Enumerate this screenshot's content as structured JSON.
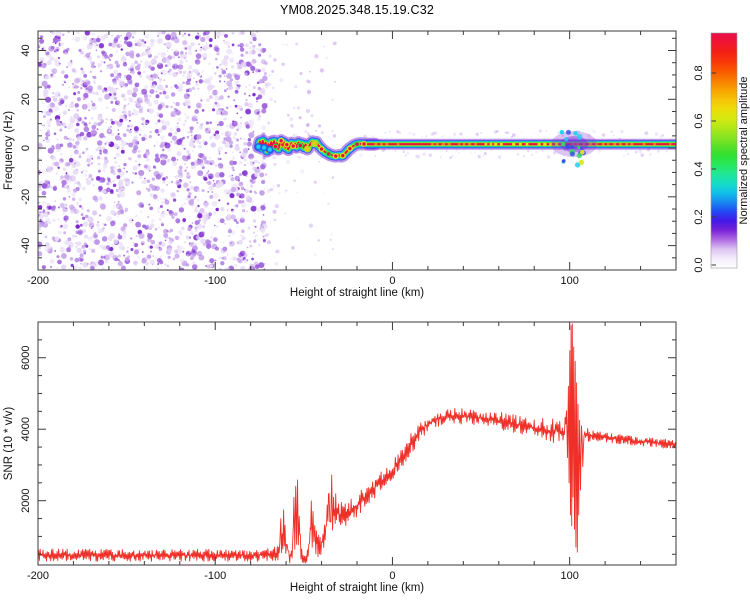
{
  "title": "YM08.2025.348.15.19.C32",
  "chart_data": [
    {
      "type": "heatmap",
      "name": "spectrogram",
      "xlabel": "Height of straight line (km)",
      "ylabel": "Frequency (Hz)",
      "xlim": [
        -200,
        160
      ],
      "ylim": [
        -50,
        48
      ],
      "x_minor_step": 20,
      "y_minor_step": 5,
      "x_major_ticks": [
        {
          "v": -200,
          "label": "-200"
        },
        {
          "v": -100,
          "label": "-100"
        },
        {
          "v": 0,
          "label": "0"
        },
        {
          "v": 100,
          "label": "100"
        }
      ],
      "y_major_ticks": [
        {
          "v": 40,
          "label": "40"
        },
        {
          "v": 20,
          "label": "20"
        },
        {
          "v": 0,
          "label": "0"
        },
        {
          "v": -20,
          "label": "-20"
        },
        {
          "v": -40,
          "label": "-40"
        }
      ],
      "noise_region_x": [
        -200,
        -72
      ],
      "disturbance_x": [
        95,
        110
      ],
      "trace_freq_hz": [
        [
          -75.6,
          0.5
        ],
        [
          -74.8,
          2.6
        ],
        [
          -74,
          0
        ],
        [
          -73.2,
          3
        ],
        [
          -72.4,
          0.2
        ],
        [
          -71.6,
          2.2
        ],
        [
          -70.8,
          -1.2
        ],
        [
          -70,
          1.6
        ],
        [
          -69.2,
          -0.6
        ],
        [
          -68.4,
          2.4
        ],
        [
          -67.6,
          0.4
        ],
        [
          -66.8,
          2.8
        ],
        [
          -66,
          0.6
        ],
        [
          -65.2,
          2
        ],
        [
          -64.4,
          -0.4
        ],
        [
          -63.6,
          1.6
        ],
        [
          -62.8,
          3
        ],
        [
          -62,
          1
        ],
        [
          -61.2,
          2.4
        ],
        [
          -60.4,
          0.2
        ],
        [
          -59.6,
          1.4
        ],
        [
          -58.8,
          -0.6
        ],
        [
          -58,
          0.8
        ],
        [
          -57,
          2
        ],
        [
          -56,
          0.8
        ],
        [
          -55,
          1.8
        ],
        [
          -54,
          0.4
        ],
        [
          -53,
          2.2
        ],
        [
          -52,
          1
        ],
        [
          -51,
          1.8
        ],
        [
          -50,
          0.2
        ],
        [
          -49,
          1.4
        ],
        [
          -48,
          -0.4
        ],
        [
          -47,
          0.8
        ],
        [
          -46,
          2
        ],
        [
          -45,
          2.6
        ],
        [
          -44,
          1.8
        ],
        [
          -43,
          2.4
        ],
        [
          -42,
          1.2
        ],
        [
          -41,
          0.4
        ],
        [
          -40,
          -0.4
        ],
        [
          -39,
          -1
        ],
        [
          -38,
          -1.6
        ],
        [
          -37,
          -2
        ],
        [
          -36,
          -2.4
        ],
        [
          -35,
          -2.8
        ],
        [
          -34,
          -3
        ],
        [
          -33,
          -3.2
        ],
        [
          -32,
          -3.3
        ],
        [
          -31,
          -3.2
        ],
        [
          -30,
          -3
        ],
        [
          -29,
          -3.3
        ],
        [
          -28,
          -3.1
        ],
        [
          -27,
          -2.4
        ],
        [
          -26,
          -1.6
        ],
        [
          -25,
          -0.8
        ],
        [
          -24,
          -0.2
        ],
        [
          -23,
          0.4
        ],
        [
          -22,
          0.9
        ],
        [
          -21,
          1.3
        ],
        [
          -20,
          1.6
        ],
        [
          -18,
          1.8
        ],
        [
          -16,
          1.7
        ],
        [
          -14,
          1.6
        ],
        [
          -10,
          1.6
        ],
        [
          0,
          1.6
        ],
        [
          40,
          1.6
        ],
        [
          80,
          1.6
        ],
        [
          120,
          1.6
        ],
        [
          160,
          1.6
        ]
      ],
      "colorbar": {
        "label": "Normalized spectral amplitude",
        "ticks": [
          {
            "v": 0.0,
            "label": "0.0"
          },
          {
            "v": 0.2,
            "label": "0.2"
          },
          {
            "v": 0.4,
            "label": "0.4"
          },
          {
            "v": 0.6,
            "label": "0.6"
          },
          {
            "v": 0.8,
            "label": "0.8"
          }
        ],
        "stops": [
          [
            0,
            "#ffffff"
          ],
          [
            0.04,
            "#f4ecfa"
          ],
          [
            0.08,
            "#ddc4f2"
          ],
          [
            0.12,
            "#b06ce2"
          ],
          [
            0.16,
            "#7a24d8"
          ],
          [
            0.2,
            "#4418e8"
          ],
          [
            0.24,
            "#2248f4"
          ],
          [
            0.28,
            "#1888f0"
          ],
          [
            0.32,
            "#10c0e8"
          ],
          [
            0.36,
            "#16dcc4"
          ],
          [
            0.4,
            "#20e896"
          ],
          [
            0.44,
            "#28e85c"
          ],
          [
            0.48,
            "#30e032"
          ],
          [
            0.52,
            "#5ce028"
          ],
          [
            0.56,
            "#8ce420"
          ],
          [
            0.6,
            "#b4e818"
          ],
          [
            0.64,
            "#d8e810"
          ],
          [
            0.68,
            "#eeda08"
          ],
          [
            0.72,
            "#f6c006"
          ],
          [
            0.76,
            "#f8a000"
          ],
          [
            0.8,
            "#f87c00"
          ],
          [
            0.84,
            "#f85600"
          ],
          [
            0.88,
            "#f83608"
          ],
          [
            0.92,
            "#f42016"
          ],
          [
            0.96,
            "#ee1432"
          ],
          [
            1,
            "#e80e4a"
          ]
        ]
      }
    },
    {
      "type": "line",
      "name": "snr",
      "xlabel": "Height of straight line (km)",
      "ylabel": "SNR (10 * v/v)",
      "xlim": [
        -200,
        160
      ],
      "ylim": [
        200,
        7000
      ],
      "x_minor_step": 20,
      "y_minor_step": 500,
      "x_major_ticks": [
        {
          "v": -200,
          "label": "-200"
        },
        {
          "v": -100,
          "label": "-100"
        },
        {
          "v": 0,
          "label": "0"
        },
        {
          "v": 100,
          "label": "100"
        }
      ],
      "y_major_ticks": [
        {
          "v": 2000,
          "label": "2000"
        },
        {
          "v": 4000,
          "label": "4000"
        },
        {
          "v": 6000,
          "label": "6000"
        }
      ],
      "line_color": "#ee3028",
      "keypoints": [
        [
          -200,
          480,
          170
        ],
        [
          -160,
          470,
          170
        ],
        [
          -120,
          470,
          170
        ],
        [
          -90,
          470,
          170
        ],
        [
          -75,
          480,
          180
        ],
        [
          -68,
          490,
          190
        ],
        [
          -65,
          520,
          220
        ],
        [
          -63.5,
          700,
          400
        ],
        [
          -63,
          1500,
          250
        ],
        [
          -62.6,
          500,
          200
        ],
        [
          -62.2,
          1300,
          350
        ],
        [
          -61.8,
          600,
          250
        ],
        [
          -61.4,
          1800,
          300
        ],
        [
          -61,
          700,
          300
        ],
        [
          -60.6,
          1400,
          400
        ],
        [
          -60.2,
          500,
          250
        ],
        [
          -59.8,
          1100,
          350
        ],
        [
          -59.4,
          600,
          250
        ],
        [
          -59,
          900,
          300
        ],
        [
          -58.5,
          500,
          220
        ],
        [
          -58,
          430,
          200
        ],
        [
          -57,
          470,
          220
        ],
        [
          -56.2,
          900,
          400
        ],
        [
          -55.6,
          1900,
          400
        ],
        [
          -55.1,
          800,
          350
        ],
        [
          -54.6,
          2400,
          300
        ],
        [
          -54.1,
          900,
          400
        ],
        [
          -53.6,
          2200,
          500
        ],
        [
          -53.1,
          800,
          350
        ],
        [
          -52.6,
          1400,
          450
        ],
        [
          -52,
          800,
          350
        ],
        [
          -51.2,
          500,
          250
        ],
        [
          -50.4,
          420,
          200
        ],
        [
          -49.6,
          380,
          180
        ],
        [
          -48.8,
          400,
          190
        ],
        [
          -48,
          450,
          210
        ],
        [
          -47.2,
          600,
          280
        ],
        [
          -46.4,
          1100,
          400
        ],
        [
          -45.8,
          1750,
          350
        ],
        [
          -45.3,
          900,
          350
        ],
        [
          -44.8,
          1600,
          400
        ],
        [
          -44.3,
          850,
          350
        ],
        [
          -43.8,
          1250,
          400
        ],
        [
          -43.2,
          750,
          320
        ],
        [
          -42.6,
          950,
          350
        ],
        [
          -42,
          700,
          300
        ],
        [
          -41.2,
          800,
          320
        ],
        [
          -40.4,
          700,
          300
        ],
        [
          -39.6,
          850,
          330
        ],
        [
          -38.8,
          950,
          350
        ],
        [
          -38,
          1100,
          380
        ],
        [
          -37.2,
          1350,
          400
        ],
        [
          -36.4,
          1600,
          420
        ],
        [
          -35.8,
          2500,
          300
        ],
        [
          -35.3,
          1400,
          400
        ],
        [
          -34.8,
          1800,
          400
        ],
        [
          -34.3,
          2550,
          300
        ],
        [
          -33.8,
          1500,
          400
        ],
        [
          -33.2,
          1750,
          420
        ],
        [
          -32.6,
          1500,
          400
        ],
        [
          -32,
          1800,
          420
        ],
        [
          -31.2,
          1550,
          400
        ],
        [
          -30.4,
          1750,
          400
        ],
        [
          -29.6,
          1500,
          380
        ],
        [
          -28.8,
          1650,
          380
        ],
        [
          -28,
          1550,
          360
        ],
        [
          -27,
          1600,
          360
        ],
        [
          -26,
          1550,
          350
        ],
        [
          -25,
          1620,
          350
        ],
        [
          -24,
          1680,
          340
        ],
        [
          -23,
          1720,
          340
        ],
        [
          -22,
          1770,
          330
        ],
        [
          -21,
          1820,
          330
        ],
        [
          -20,
          1870,
          320
        ],
        [
          -18,
          1960,
          320
        ],
        [
          -16,
          2060,
          310
        ],
        [
          -14,
          2160,
          310
        ],
        [
          -12,
          2260,
          300
        ],
        [
          -10,
          2360,
          300
        ],
        [
          -8,
          2460,
          300
        ],
        [
          -6,
          2560,
          300
        ],
        [
          -4,
          2660,
          290
        ],
        [
          -2,
          2760,
          290
        ],
        [
          0,
          2860,
          290
        ],
        [
          2,
          2960,
          290
        ],
        [
          4,
          3100,
          290
        ],
        [
          6,
          3250,
          300
        ],
        [
          8,
          3400,
          300
        ],
        [
          10,
          3550,
          300
        ],
        [
          12,
          3700,
          300
        ],
        [
          14,
          3850,
          290
        ],
        [
          16,
          3960,
          280
        ],
        [
          18,
          4060,
          270
        ],
        [
          20,
          4150,
          260
        ],
        [
          24,
          4260,
          250
        ],
        [
          28,
          4320,
          240
        ],
        [
          34,
          4370,
          230
        ],
        [
          42,
          4350,
          230
        ],
        [
          50,
          4310,
          240
        ],
        [
          58,
          4250,
          250
        ],
        [
          66,
          4180,
          260
        ],
        [
          72,
          4110,
          280
        ],
        [
          78,
          4050,
          300
        ],
        [
          84,
          3990,
          320
        ],
        [
          90,
          3960,
          330
        ],
        [
          94,
          3950,
          360
        ],
        [
          97,
          3920,
          380
        ],
        [
          98.2,
          4400,
          180
        ],
        [
          98.8,
          3300,
          150
        ],
        [
          99.3,
          5200,
          0
        ],
        [
          99.7,
          2500,
          0
        ],
        [
          100.1,
          6200,
          0
        ],
        [
          100.45,
          1600,
          0
        ],
        [
          100.8,
          6900,
          0
        ],
        [
          101.15,
          1300,
          0
        ],
        [
          101.5,
          6950,
          0
        ],
        [
          101.9,
          2100,
          0
        ],
        [
          102.3,
          6300,
          0
        ],
        [
          102.7,
          1200,
          0
        ],
        [
          103.1,
          5900,
          0
        ],
        [
          103.5,
          700,
          0
        ],
        [
          103.9,
          5300,
          0
        ],
        [
          104.3,
          560,
          0
        ],
        [
          104.7,
          4700,
          0
        ],
        [
          105.1,
          1600,
          0
        ],
        [
          105.6,
          4250,
          0
        ],
        [
          106.1,
          2300,
          0
        ],
        [
          106.7,
          4100,
          150
        ],
        [
          107.4,
          3000,
          150
        ],
        [
          108.1,
          3900,
          180
        ],
        [
          109,
          3850,
          190
        ],
        [
          111,
          3830,
          180
        ],
        [
          114,
          3810,
          160
        ],
        [
          118,
          3780,
          150
        ],
        [
          124,
          3740,
          140
        ],
        [
          130,
          3710,
          140
        ],
        [
          136,
          3680,
          130
        ],
        [
          142,
          3650,
          130
        ],
        [
          148,
          3620,
          130
        ],
        [
          154,
          3590,
          130
        ],
        [
          160,
          3570,
          130
        ]
      ]
    }
  ]
}
